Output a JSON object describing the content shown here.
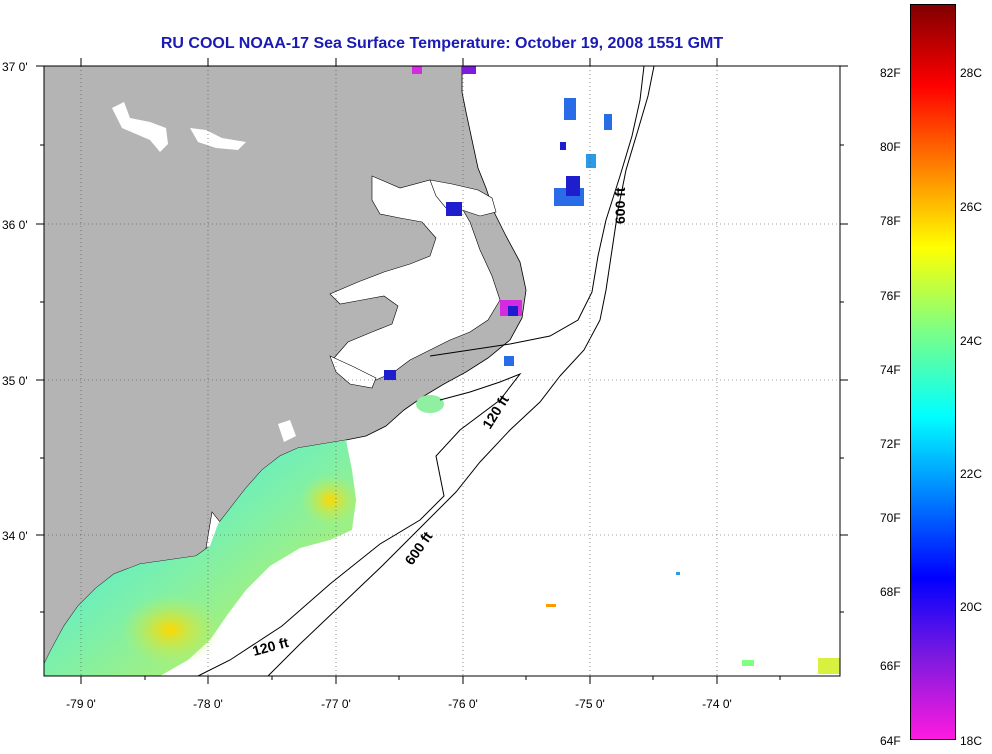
{
  "title": "RU COOL  NOAA-17  Sea Surface Temperature:  October 19, 2008 1551 GMT",
  "lat_labels": [
    "37 0'",
    "36 0'",
    "35 0'",
    "34 0'"
  ],
  "lon_labels": [
    "-79 0'",
    "-78 0'",
    "-77 0'",
    "-76 0'",
    "-75 0'",
    "-74 0'"
  ],
  "depth_labels": {
    "d600_north": "600 ft",
    "d120_mid": "120 ft",
    "d600_south": "600 ft",
    "d120_south": "120 ft"
  },
  "colorbar": {
    "fahrenheit_labels": [
      "82F",
      "80F",
      "78F",
      "76F",
      "74F",
      "72F",
      "70F",
      "68F",
      "66F",
      "64F"
    ],
    "celsius_labels": [
      "28C",
      "26C",
      "24C",
      "22C",
      "20C",
      "18C"
    ],
    "colors": [
      "#ff1adf",
      "#7f1adf",
      "#0000ff",
      "#0080ff",
      "#00ffff",
      "#80ff80",
      "#ffff00",
      "#ff8000",
      "#ff0000",
      "#800000"
    ]
  },
  "map_colors": {
    "land": "#b4b4b4",
    "water": "#ffffff",
    "coast": "#000000"
  }
}
